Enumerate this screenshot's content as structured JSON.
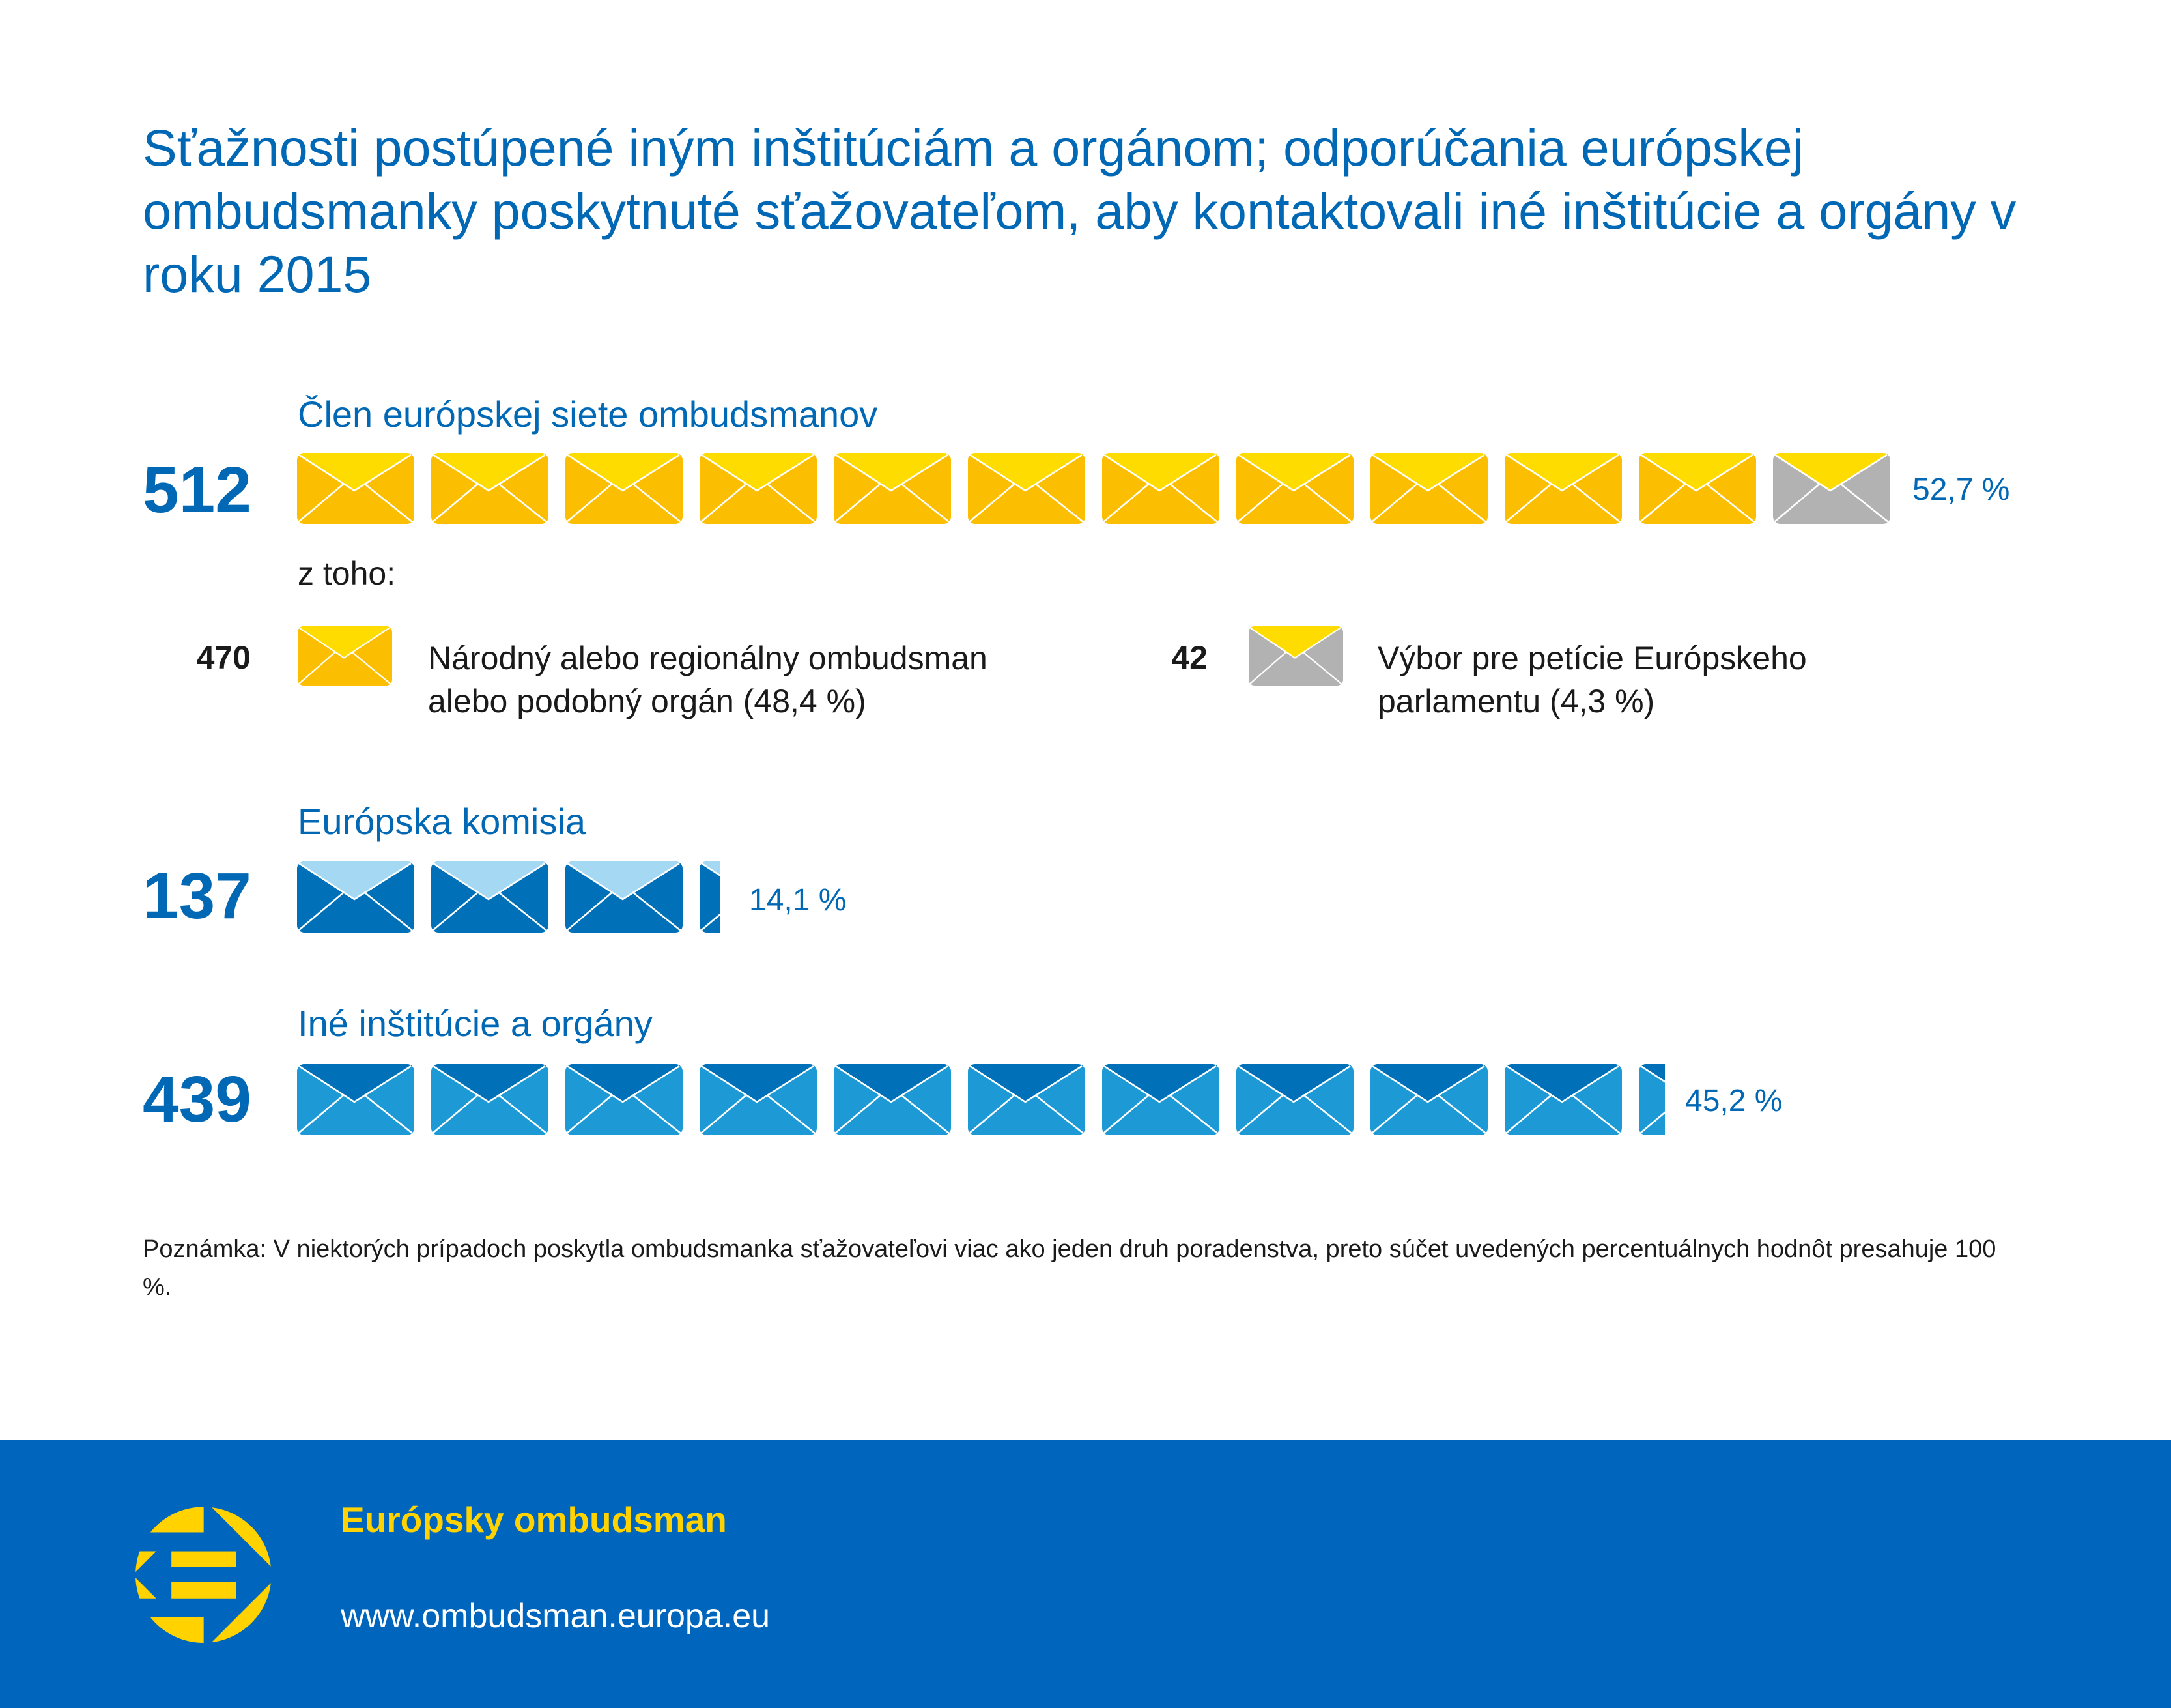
{
  "title": "Sťažnosti postúpené iným inštitúciám a orgánom; odporúčania európskej ombudsmanky poskytnuté sťažovateľom, aby kontaktovali iné inštitúcie a orgány v roku 2015",
  "chart_data": {
    "type": "pictogram",
    "title": "Sťažnosti postúpené iným inštitúciám a orgánom; odporúčania európskej ombudsmanky poskytnuté sťažovateľom, aby kontaktovali iné inštitúcie a orgány v roku 2015",
    "unit": "envelope icons proportional to share",
    "series": [
      {
        "name": "Člen európskej siete ombudsmanov",
        "count": "512",
        "percent_label": "52,7 %",
        "value": 52.7,
        "icons": 12,
        "body_color": "#fbbe00",
        "flap_color": "#ffdc00",
        "last_icon_body_color": "#b2b2b2"
      },
      {
        "name": "Európska komisia",
        "count": "137",
        "percent_label": "14,1 %",
        "value": 14.1,
        "icons": 3.17,
        "body_color": "#0070b8",
        "flap_color": "#a5d8f3"
      },
      {
        "name": "Iné inštitúcie a orgány",
        "count": "439",
        "percent_label": "45,2 %",
        "value": 45.2,
        "icons": 10.22,
        "body_color": "#1d9ad6",
        "flap_color": "#0070b8"
      }
    ],
    "breakdown": {
      "label": "z toho:",
      "items": [
        {
          "count": "470",
          "text": "Národný alebo regionálny ombudsman alebo podobný orgán (48,4 %)",
          "line1": "Národný alebo regionálny ombudsman",
          "line2": "alebo podobný orgán (48,4 %)",
          "value": 48.4,
          "body_color": "#fbbe00",
          "flap_color": "#ffdc00"
        },
        {
          "count": "42",
          "text": "Výbor pre petície Európskeho parlamentu (4,3 %)",
          "line1": "Výbor pre petície Európskeho",
          "line2": "parlamentu (4,3 %)",
          "value": 4.3,
          "body_color": "#b2b2b2",
          "flap_color": "#ffdc00"
        }
      ]
    }
  },
  "note": "Poznámka: V niektorých prípadoch poskytla ombudsmanka sťažovateľovi viac ako jeden druh poradenstva, preto súčet uvedených percentuálnych hodnôt presahuje 100 %.",
  "footer": {
    "brand": "Európsky ombudsman",
    "url": "www.ombudsman.europa.eu",
    "logo_icon": "european-ombudsman-logo"
  },
  "colors": {
    "title": "#0068b4",
    "footer_bg": "#0066bd",
    "brand": "#ffd200"
  }
}
